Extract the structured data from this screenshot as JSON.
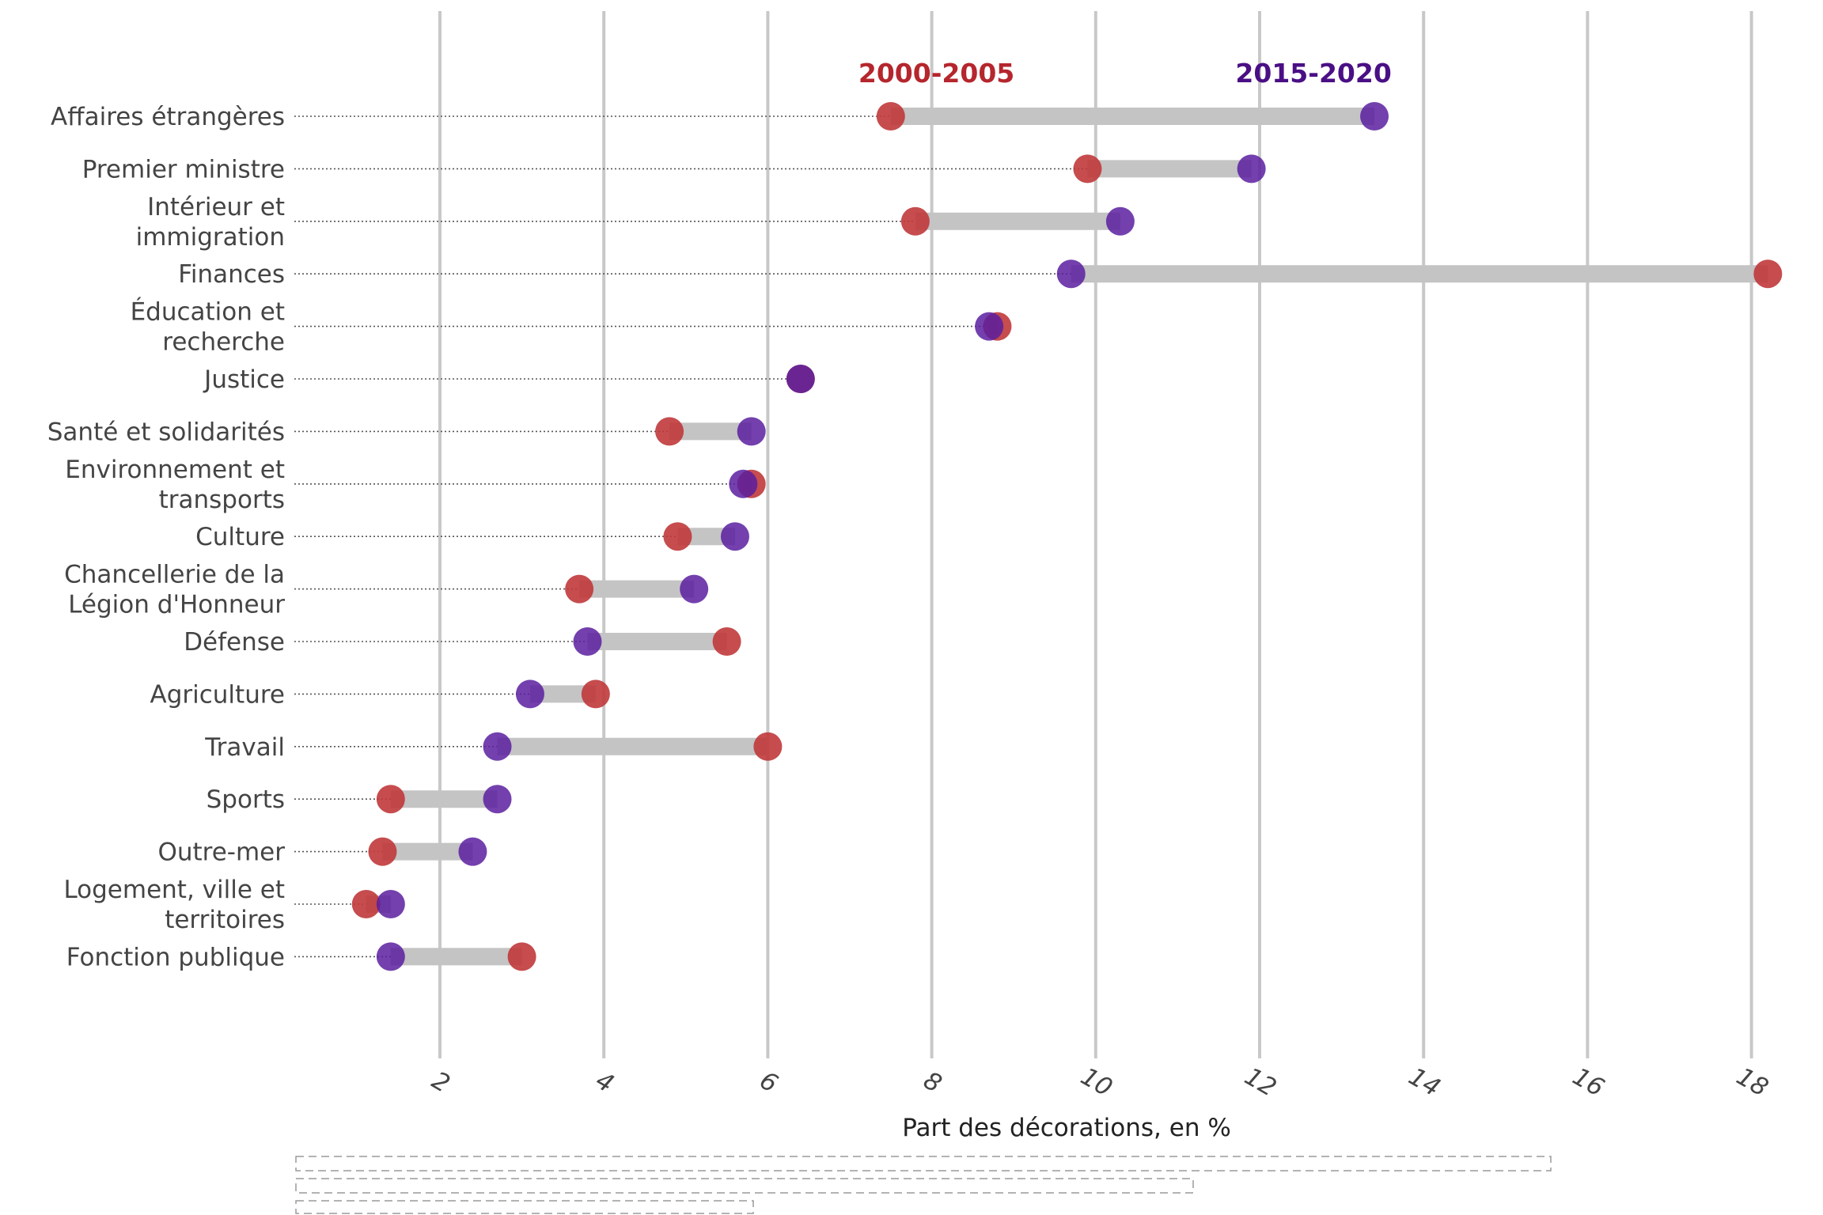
{
  "colors": {
    "period_a": "#c0393b",
    "period_b": "#5b1fa0",
    "label_a": "#b5262d",
    "label_b": "#4a0f85",
    "connector": "#c4c4c4",
    "grid": "#c8c8c8",
    "leader": "#555555"
  },
  "chart_data": {
    "type": "dumbbell",
    "xlabel": "Part des décorations, en %",
    "x_ticks": [
      2,
      4,
      6,
      8,
      10,
      12,
      14,
      16,
      18
    ],
    "xlim": [
      0.2,
      18.4
    ],
    "grid": "vertical",
    "series_labels": [
      {
        "name": "2000-2005",
        "x": 9.1
      },
      {
        "name": "2015-2020",
        "x": 13.7
      }
    ],
    "categories": [
      {
        "lines": [
          "Affaires étrangères"
        ],
        "a": 7.5,
        "b": 13.4
      },
      {
        "lines": [
          "Premier ministre"
        ],
        "a": 9.9,
        "b": 11.9
      },
      {
        "lines": [
          "Intérieur et",
          "immigration"
        ],
        "a": 7.8,
        "b": 10.3
      },
      {
        "lines": [
          "Finances"
        ],
        "a": 18.2,
        "b": 9.7
      },
      {
        "lines": [
          "Éducation et",
          "recherche"
        ],
        "a": 8.8,
        "b": 8.7
      },
      {
        "lines": [
          "Justice"
        ],
        "a": 6.4,
        "b": 6.4
      },
      {
        "lines": [
          "Santé et solidarités"
        ],
        "a": 4.8,
        "b": 5.8
      },
      {
        "lines": [
          "Environnement et",
          "transports"
        ],
        "a": 5.8,
        "b": 5.7
      },
      {
        "lines": [
          "Culture"
        ],
        "a": 4.9,
        "b": 5.6
      },
      {
        "lines": [
          "Chancellerie de la",
          "Légion d'Honneur"
        ],
        "a": 3.7,
        "b": 5.1
      },
      {
        "lines": [
          "Défense"
        ],
        "a": 5.5,
        "b": 3.8
      },
      {
        "lines": [
          "Agriculture"
        ],
        "a": 3.9,
        "b": 3.1
      },
      {
        "lines": [
          "Travail"
        ],
        "a": 6.0,
        "b": 2.7
      },
      {
        "lines": [
          "Sports"
        ],
        "a": 1.4,
        "b": 2.7
      },
      {
        "lines": [
          "Outre-mer"
        ],
        "a": 1.3,
        "b": 2.4
      },
      {
        "lines": [
          "Logement, ville et",
          "territoires"
        ],
        "a": 1.1,
        "b": 1.4
      },
      {
        "lines": [
          "Fonction publique"
        ],
        "a": 3.0,
        "b": 1.4
      }
    ]
  }
}
